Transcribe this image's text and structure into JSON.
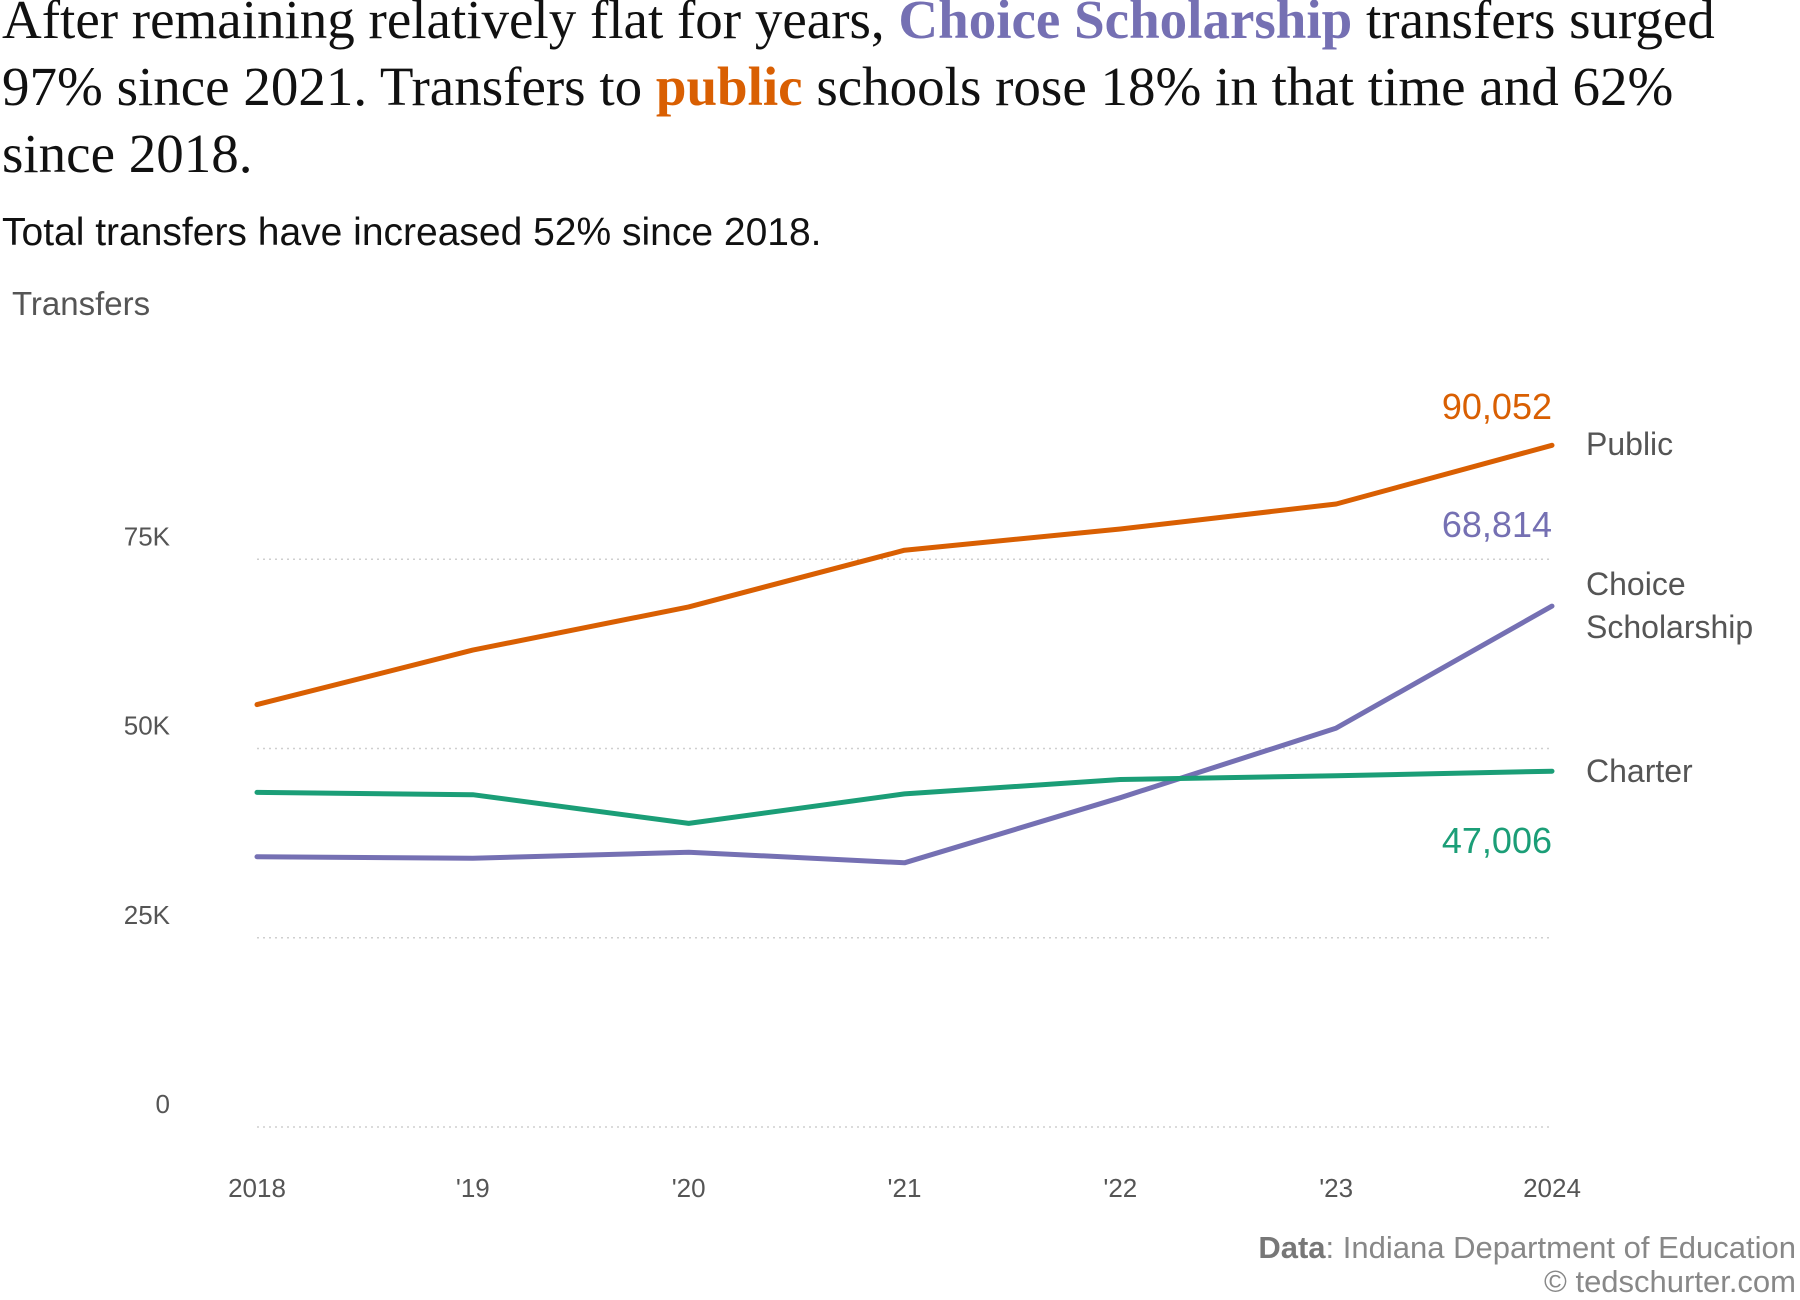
{
  "headline": {
    "part1": "After remaining relatively flat for years, ",
    "choice": "Choice Scholarship",
    "part2": " transfers surged 97% since 2021. Transfers to ",
    "public": "public",
    "part3": " schools rose 18% in that time and 62% since 2018."
  },
  "subtitle": "Total transfers have increased 52% since 2018.",
  "footer": {
    "source_label": "Data",
    "source_text": ": Indiana Department of Education",
    "copyright": "© tedschurter.com"
  },
  "chart_data": {
    "type": "line",
    "title": "After remaining relatively flat for years, Choice Scholarship transfers surged 97% since 2021. Transfers to public schools rose 18% in that time and 62% since 2018.",
    "subtitle": "Total transfers have increased 52% since 2018.",
    "ylabel": "Transfers",
    "xlabel": "",
    "x": [
      2018,
      2019,
      2020,
      2021,
      2022,
      2023,
      2024
    ],
    "x_tick_labels": [
      "2018",
      "'19",
      "'20",
      "'21",
      "'22",
      "'23",
      "2024"
    ],
    "ylim": [
      0,
      100000
    ],
    "y_ticks": [
      0,
      25000,
      50000,
      75000
    ],
    "y_tick_labels": [
      "0",
      "25K",
      "50K",
      "75K"
    ],
    "grid": "horizontal dotted",
    "legend": "direct labels at right end of lines",
    "series": [
      {
        "name": "Public",
        "color": "#d95f02",
        "values": [
          55800,
          63000,
          68700,
          76200,
          79000,
          82300,
          90052
        ],
        "end_label": "90,052"
      },
      {
        "name": "Choice Scholarship",
        "label_lines": [
          "Choice",
          "Scholarship"
        ],
        "color": "#7570b3",
        "values": [
          35700,
          35500,
          36300,
          34900,
          43500,
          52700,
          68814
        ],
        "end_label": "68,814"
      },
      {
        "name": "Charter",
        "color": "#1b9e77",
        "values": [
          44200,
          43900,
          40100,
          44000,
          45900,
          46400,
          47006
        ],
        "end_label": "47,006"
      }
    ]
  }
}
